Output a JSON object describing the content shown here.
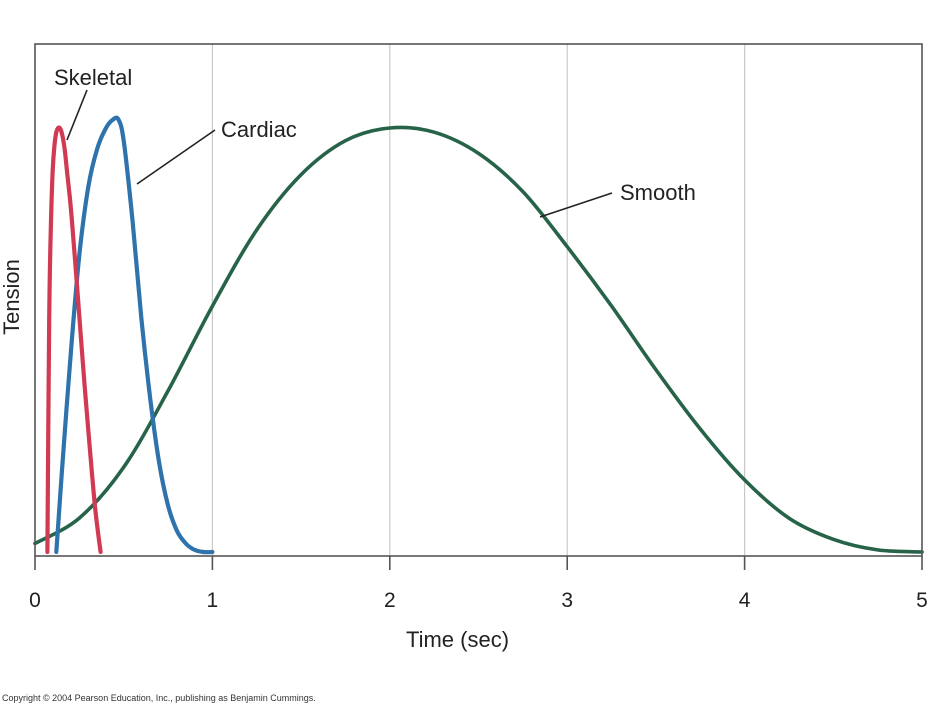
{
  "chart_data": {
    "type": "line",
    "title": "",
    "xlabel": "Time (sec)",
    "ylabel": "Tension",
    "xlim": [
      0,
      5
    ],
    "ylim": [
      0,
      1.05
    ],
    "x_ticks": [
      0,
      1,
      2,
      3,
      4,
      5
    ],
    "x_tick_labels": [
      "0",
      "1",
      "2",
      "3",
      "4",
      "5"
    ],
    "grid": "vertical",
    "legend": "none",
    "series": [
      {
        "name": "Skeletal",
        "color": "#d03a52",
        "x": [
          0.07,
          0.08,
          0.09,
          0.1,
          0.11,
          0.12,
          0.13,
          0.14,
          0.15,
          0.16,
          0.17,
          0.18,
          0.2,
          0.22,
          0.24,
          0.26,
          0.28,
          0.3,
          0.32,
          0.34,
          0.36,
          0.37
        ],
        "values": [
          0.0,
          0.55,
          0.78,
          0.9,
          0.96,
          0.99,
          1.0,
          1.0,
          0.99,
          0.97,
          0.94,
          0.9,
          0.82,
          0.72,
          0.61,
          0.5,
          0.39,
          0.29,
          0.19,
          0.1,
          0.03,
          0.0
        ]
      },
      {
        "name": "Cardiac",
        "color": "#2f73ad",
        "x": [
          0.12,
          0.15,
          0.2,
          0.25,
          0.3,
          0.35,
          0.4,
          0.44,
          0.47,
          0.5,
          0.55,
          0.6,
          0.65,
          0.7,
          0.75,
          0.8,
          0.85,
          0.9,
          0.95,
          1.0
        ],
        "values": [
          0.0,
          0.18,
          0.46,
          0.7,
          0.86,
          0.95,
          1.0,
          1.02,
          1.02,
          0.97,
          0.78,
          0.55,
          0.36,
          0.21,
          0.11,
          0.05,
          0.02,
          0.005,
          0.0,
          0.0
        ]
      },
      {
        "name": "Smooth",
        "color": "#266348",
        "x": [
          0.0,
          0.25,
          0.5,
          0.75,
          1.0,
          1.25,
          1.5,
          1.75,
          2.0,
          2.25,
          2.5,
          2.75,
          3.0,
          3.25,
          3.5,
          3.75,
          4.0,
          4.25,
          4.5,
          4.75,
          5.0
        ],
        "values": [
          0.02,
          0.08,
          0.2,
          0.38,
          0.58,
          0.76,
          0.89,
          0.97,
          1.0,
          0.99,
          0.94,
          0.85,
          0.72,
          0.58,
          0.43,
          0.29,
          0.17,
          0.08,
          0.03,
          0.005,
          0.0
        ]
      }
    ]
  },
  "footer": {
    "copyright": "Copyright © 2004 Pearson Education, Inc., publishing as Benjamin Cummings."
  }
}
